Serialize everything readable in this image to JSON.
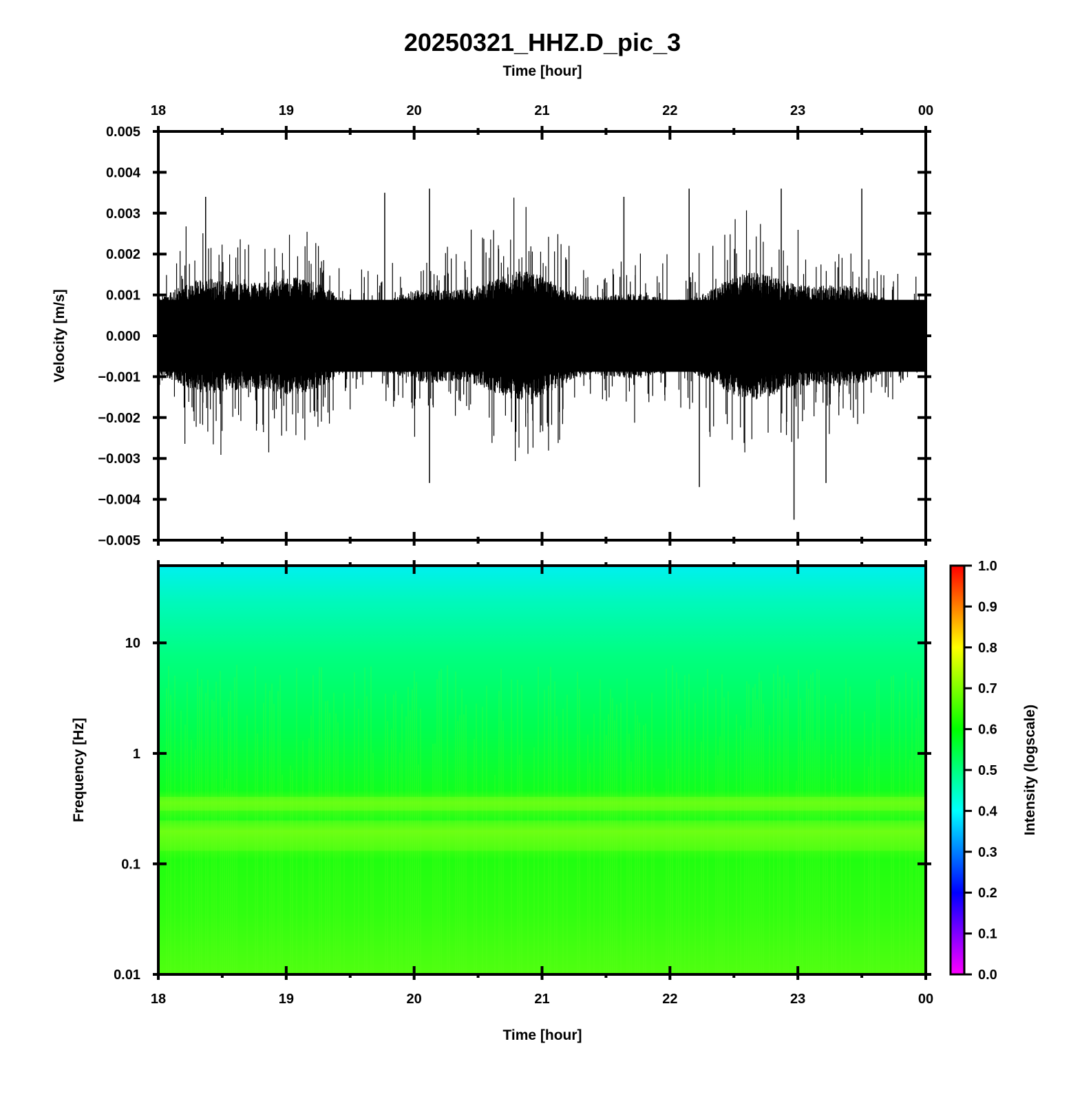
{
  "title": "20250321_HHZ.D_pic_3",
  "top_xlabel": "Time [hour]",
  "bottom_xlabel": "Time [hour]",
  "chart_data": [
    {
      "type": "line",
      "panel": "waveform",
      "ylabel": "Velocity [m/s]",
      "xlabel": "Time [hour]",
      "x_ticks": [
        "18",
        "19",
        "20",
        "21",
        "22",
        "23",
        "00"
      ],
      "x_range_hours": [
        18,
        24
      ],
      "y_ticks": [
        "0.005",
        "0.004",
        "0.003",
        "0.002",
        "0.001",
        "0.000",
        "−0.001",
        "−0.002",
        "−0.003",
        "−0.004",
        "−0.005"
      ],
      "ylim": [
        -0.005,
        0.005
      ],
      "series_color": "#000000",
      "typical_amplitude": 0.0012,
      "notable_peaks": [
        {
          "time": 18.37,
          "value": 0.0034
        },
        {
          "time": 19.77,
          "value": 0.0035
        },
        {
          "time": 20.12,
          "value": 0.0036
        },
        {
          "time": 20.12,
          "value": -0.0036
        },
        {
          "time": 21.64,
          "value": 0.0034
        },
        {
          "time": 22.15,
          "value": 0.0036
        },
        {
          "time": 22.23,
          "value": -0.0037
        },
        {
          "time": 22.87,
          "value": 0.0036
        },
        {
          "time": 22.97,
          "value": -0.0045
        },
        {
          "time": 23.5,
          "value": 0.0036
        },
        {
          "time": 23.22,
          "value": -0.0036
        }
      ]
    },
    {
      "type": "heatmap",
      "panel": "spectrogram",
      "ylabel": "Frequency [Hz]",
      "xlabel": "Time [hour]",
      "x_ticks": [
        "18",
        "19",
        "20",
        "21",
        "22",
        "23",
        "00"
      ],
      "x_range_hours": [
        18,
        24
      ],
      "y_scale": "log",
      "y_ticks": [
        "10",
        "1",
        "0.1",
        "0.01"
      ],
      "ylim": [
        0.01,
        50
      ],
      "colorbar": {
        "label": "Intensity (logscale)",
        "ticks": [
          "1.0",
          "0.9",
          "0.8",
          "0.7",
          "0.6",
          "0.5",
          "0.4",
          "0.3",
          "0.2",
          "0.1",
          "0.0"
        ],
        "range": [
          0,
          1
        ],
        "colors": [
          "#ff00ff",
          "#0000ff",
          "#00ffff",
          "#00ff00",
          "#ffff00",
          "#ff0000"
        ]
      },
      "frequency_intensity_profile": [
        {
          "freq": 50,
          "intensity": 0.42
        },
        {
          "freq": 20,
          "intensity": 0.5
        },
        {
          "freq": 10,
          "intensity": 0.55
        },
        {
          "freq": 3,
          "intensity": 0.6
        },
        {
          "freq": 1,
          "intensity": 0.62
        },
        {
          "freq": 0.35,
          "intensity": 0.68
        },
        {
          "freq": 0.18,
          "intensity": 0.7
        },
        {
          "freq": 0.05,
          "intensity": 0.64
        },
        {
          "freq": 0.01,
          "intensity": 0.66
        }
      ]
    }
  ]
}
